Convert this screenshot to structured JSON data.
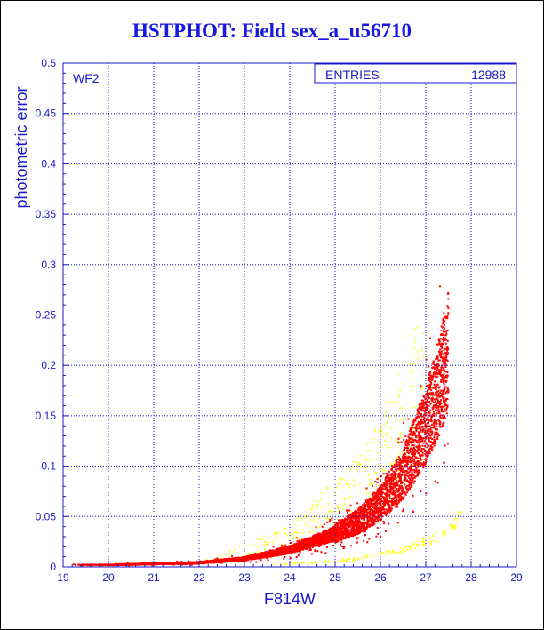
{
  "chart_data": {
    "type": "scatter",
    "title": "HSTPHOT: Field sex_a_u56710",
    "xlabel": "F814W",
    "ylabel": "photometric error",
    "xlim": [
      19,
      29
    ],
    "ylim": [
      0,
      0.5
    ],
    "xticks": [
      "19",
      "20",
      "21",
      "22",
      "23",
      "24",
      "25",
      "26",
      "27",
      "28",
      "29"
    ],
    "yticks": [
      "0",
      "0.05",
      "0.1",
      "0.15",
      "0.2",
      "0.25",
      "0.3",
      "0.35",
      "0.4",
      "0.45",
      "0.5"
    ],
    "grid": true,
    "panel_label": "WF2",
    "stats_box": {
      "label": "ENTRIES",
      "value": "12988"
    },
    "colors": {
      "main": "#ff0000",
      "secondary": "#ffff00",
      "axes": "#1818c8",
      "title": "#1818e0"
    },
    "series": [
      {
        "color": "#ff0000",
        "description_points": [
          [
            19.2,
            0.002
          ],
          [
            20.0,
            0.002
          ],
          [
            21.0,
            0.003
          ],
          [
            22.0,
            0.004
          ],
          [
            23.0,
            0.008
          ],
          [
            24.0,
            0.017
          ],
          [
            25.0,
            0.033
          ],
          [
            25.5,
            0.045
          ],
          [
            26.0,
            0.063
          ],
          [
            26.5,
            0.092
          ],
          [
            27.0,
            0.14
          ],
          [
            27.3,
            0.18
          ],
          [
            27.5,
            0.215
          ]
        ]
      },
      {
        "color": "#ffff00",
        "description_points": [
          [
            22.0,
            0.006
          ],
          [
            23.0,
            0.015
          ],
          [
            24.0,
            0.03
          ],
          [
            24.5,
            0.045
          ],
          [
            25.0,
            0.06
          ],
          [
            25.5,
            0.075
          ],
          [
            26.0,
            0.1
          ],
          [
            26.5,
            0.14
          ],
          [
            27.0,
            0.19
          ]
        ]
      },
      {
        "color": "#ffff00",
        "description_points": [
          [
            23.5,
            0.002
          ],
          [
            24.5,
            0.004
          ],
          [
            25.5,
            0.008
          ],
          [
            26.5,
            0.017
          ],
          [
            27.3,
            0.03
          ],
          [
            27.8,
            0.05
          ]
        ]
      }
    ]
  }
}
